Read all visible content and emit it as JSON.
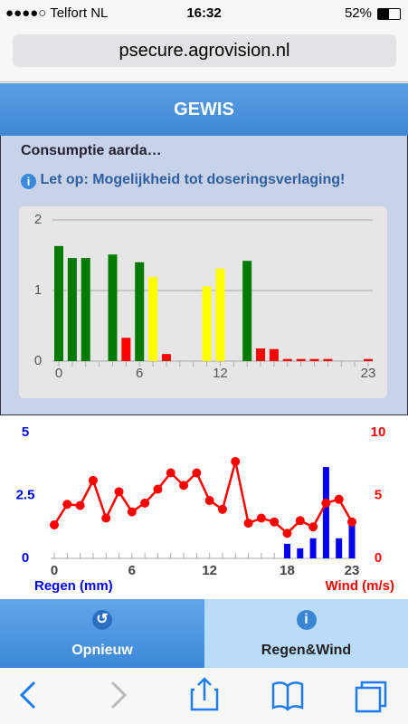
{
  "status_bar": {
    "carrier": "●●●●○ Telfort NL",
    "time": "16:32",
    "battery": "52%"
  },
  "url": "psecure.agrovision.nl",
  "header": {
    "title": "GEWIS"
  },
  "content": {
    "line": "Consumptie aarda…",
    "notice": "Let op: Mogelijkheid tot doseringsverlaging!"
  },
  "spray_chart": {
    "type": "bar",
    "x": [
      0,
      1,
      2,
      3,
      4,
      5,
      6,
      7,
      8,
      9,
      10,
      11,
      12,
      13,
      14,
      15,
      16,
      17,
      18,
      19,
      20,
      21,
      22,
      23
    ],
    "values": [
      1.63,
      1.46,
      1.46,
      null,
      1.51,
      0.33,
      1.4,
      1.19,
      0.1,
      null,
      null,
      1.06,
      1.31,
      null,
      1.42,
      0.18,
      0.17,
      0.03,
      0.03,
      0.03,
      0.03,
      null,
      null,
      0.03
    ],
    "colors": [
      "#007a00",
      "#007a00",
      "#007a00",
      null,
      "#007a00",
      "#ff0000",
      "#007a00",
      "#ffff00",
      "#ff0000",
      null,
      null,
      "#ffff00",
      "#ffff00",
      null,
      "#007a00",
      "#ff0000",
      "#ff0000",
      "#ff0000",
      "#ff0000",
      "#ff0000",
      "#ff0000",
      null,
      null,
      "#ff0000"
    ],
    "xlim": [
      0,
      23
    ],
    "xticks": [
      0,
      6,
      12,
      23
    ],
    "ylim": [
      0,
      2
    ],
    "yticks": [
      0,
      1,
      2
    ],
    "grid": true
  },
  "weather_chart": {
    "type": "bar+line",
    "x": [
      0,
      1,
      2,
      3,
      4,
      5,
      6,
      7,
      8,
      9,
      10,
      11,
      12,
      13,
      14,
      15,
      16,
      17,
      18,
      19,
      20,
      21,
      22,
      23
    ],
    "x_label": "Regen (mm)",
    "y2_label": "Wind (m/s)",
    "series": [
      {
        "name": "Regen (mm)",
        "color": "#0000ee",
        "values": [
          0,
          0,
          0,
          0,
          0,
          0,
          0,
          0,
          0,
          0,
          0,
          0,
          0,
          0,
          0,
          0,
          0,
          0,
          0.58,
          0.4,
          0.8,
          3.63,
          0.8,
          1.4
        ]
      },
      {
        "name": "Wind (m/s)",
        "color": "#ff0000",
        "axis": "y2",
        "values": [
          2.66,
          4.3,
          4.2,
          6.2,
          3.2,
          5.3,
          3.7,
          4.4,
          5.5,
          6.8,
          5.8,
          6.8,
          4.6,
          3.9,
          7.7,
          2.8,
          3.2,
          2.9,
          2.0,
          3.0,
          2.5,
          4.4,
          4.7,
          2.9
        ]
      }
    ],
    "xlim": [
      0,
      23
    ],
    "xticks": [
      0,
      6,
      12,
      18,
      23
    ],
    "ylim": [
      0,
      5
    ],
    "yticks": [
      0,
      2.5,
      5
    ],
    "y2lim": [
      0,
      10
    ],
    "y2ticks": [
      0,
      5,
      10
    ]
  },
  "tabs": [
    "Opnieuw",
    "Regen&Wind"
  ]
}
